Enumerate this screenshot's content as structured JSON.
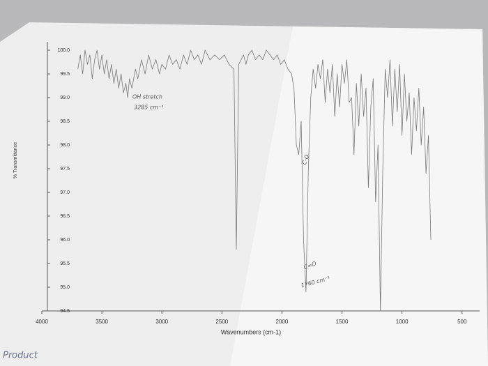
{
  "chart_data": {
    "type": "line",
    "xlabel": "Wavenumbers (cm-1)",
    "ylabel": "% Transmittance",
    "x": [
      3700,
      3680,
      3660,
      3640,
      3620,
      3600,
      3580,
      3560,
      3540,
      3520,
      3500,
      3480,
      3460,
      3440,
      3420,
      3400,
      3380,
      3360,
      3340,
      3320,
      3300,
      3285,
      3270,
      3250,
      3220,
      3200,
      3170,
      3140,
      3110,
      3080,
      3050,
      3020,
      3000,
      2970,
      2940,
      2910,
      2880,
      2850,
      2820,
      2790,
      2760,
      2730,
      2700,
      2670,
      2640,
      2600,
      2560,
      2520,
      2480,
      2440,
      2400,
      2380,
      2360,
      2340,
      2320,
      2300,
      2280,
      2250,
      2220,
      2190,
      2160,
      2130,
      2100,
      2070,
      2040,
      2010,
      1980,
      1950,
      1920,
      1900,
      1880,
      1860,
      1840,
      1820,
      1800,
      1780,
      1760,
      1740,
      1720,
      1700,
      1680,
      1660,
      1640,
      1620,
      1600,
      1580,
      1560,
      1540,
      1520,
      1500,
      1480,
      1460,
      1440,
      1420,
      1400,
      1380,
      1360,
      1340,
      1320,
      1300,
      1280,
      1260,
      1240,
      1220,
      1200,
      1180,
      1160,
      1140,
      1120,
      1100,
      1080,
      1060,
      1040,
      1020,
      1000,
      980,
      960,
      940,
      920,
      900,
      880,
      860,
      840,
      820,
      800,
      780,
      760
    ],
    "series": [
      {
        "name": "Product",
        "color": "#777777",
        "values": [
          99.6,
          99.9,
          99.5,
          100.0,
          99.7,
          99.9,
          99.4,
          99.8,
          100.0,
          99.6,
          99.9,
          99.5,
          99.8,
          99.4,
          99.7,
          99.3,
          99.6,
          99.2,
          99.5,
          99.1,
          99.3,
          99.0,
          99.4,
          99.2,
          99.6,
          99.4,
          99.8,
          99.5,
          99.9,
          99.6,
          99.8,
          99.5,
          99.7,
          99.6,
          99.9,
          99.7,
          99.8,
          99.6,
          99.9,
          99.7,
          100.0,
          99.8,
          99.9,
          99.7,
          100.0,
          99.8,
          99.9,
          99.8,
          99.9,
          99.7,
          99.6,
          95.8,
          99.7,
          99.8,
          99.9,
          99.7,
          99.9,
          100.0,
          99.8,
          99.9,
          99.8,
          100.0,
          99.9,
          99.8,
          99.9,
          99.7,
          99.8,
          99.6,
          99.5,
          99.2,
          98.0,
          97.8,
          98.5,
          96.0,
          94.9,
          97.5,
          99.0,
          99.6,
          99.2,
          99.7,
          99.4,
          99.8,
          98.9,
          99.6,
          99.1,
          99.7,
          98.6,
          99.5,
          98.8,
          99.7,
          99.3,
          99.8,
          98.9,
          99.0,
          97.8,
          99.3,
          98.4,
          99.5,
          98.6,
          99.2,
          97.1,
          98.8,
          99.4,
          96.8,
          98.0,
          94.5,
          97.5,
          99.6,
          99.0,
          99.8,
          98.4,
          99.6,
          98.7,
          99.7,
          98.2,
          99.5,
          98.5,
          99.1,
          97.8,
          99.0,
          98.3,
          99.2,
          98.0,
          98.8,
          97.4,
          98.2,
          96.0
        ]
      }
    ],
    "xlim": [
      4000,
      400
    ],
    "xticks": [
      4000,
      3500,
      3000,
      2500,
      2000,
      1500,
      1000,
      500
    ],
    "ylim": [
      94.5,
      100.0
    ],
    "yticks": [
      {
        "value": 94.5,
        "label": "94.5"
      },
      {
        "value": 95,
        "label": "95.0"
      },
      95.5,
      {
        "value": 96,
        "label": "96.0"
      },
      96.5,
      {
        "value": 97,
        "label": "97.0"
      },
      97.5,
      {
        "value": 98,
        "label": "98.0"
      },
      98.5,
      {
        "value": 99,
        "label": "99.0"
      },
      99.5,
      {
        "value": 100,
        "label": "100.0"
      }
    ],
    "grid": false,
    "annotations": [
      "OH stretch",
      "3285 cm⁻¹",
      "C-O",
      "C=O",
      "1760 cm⁻¹"
    ]
  }
}
